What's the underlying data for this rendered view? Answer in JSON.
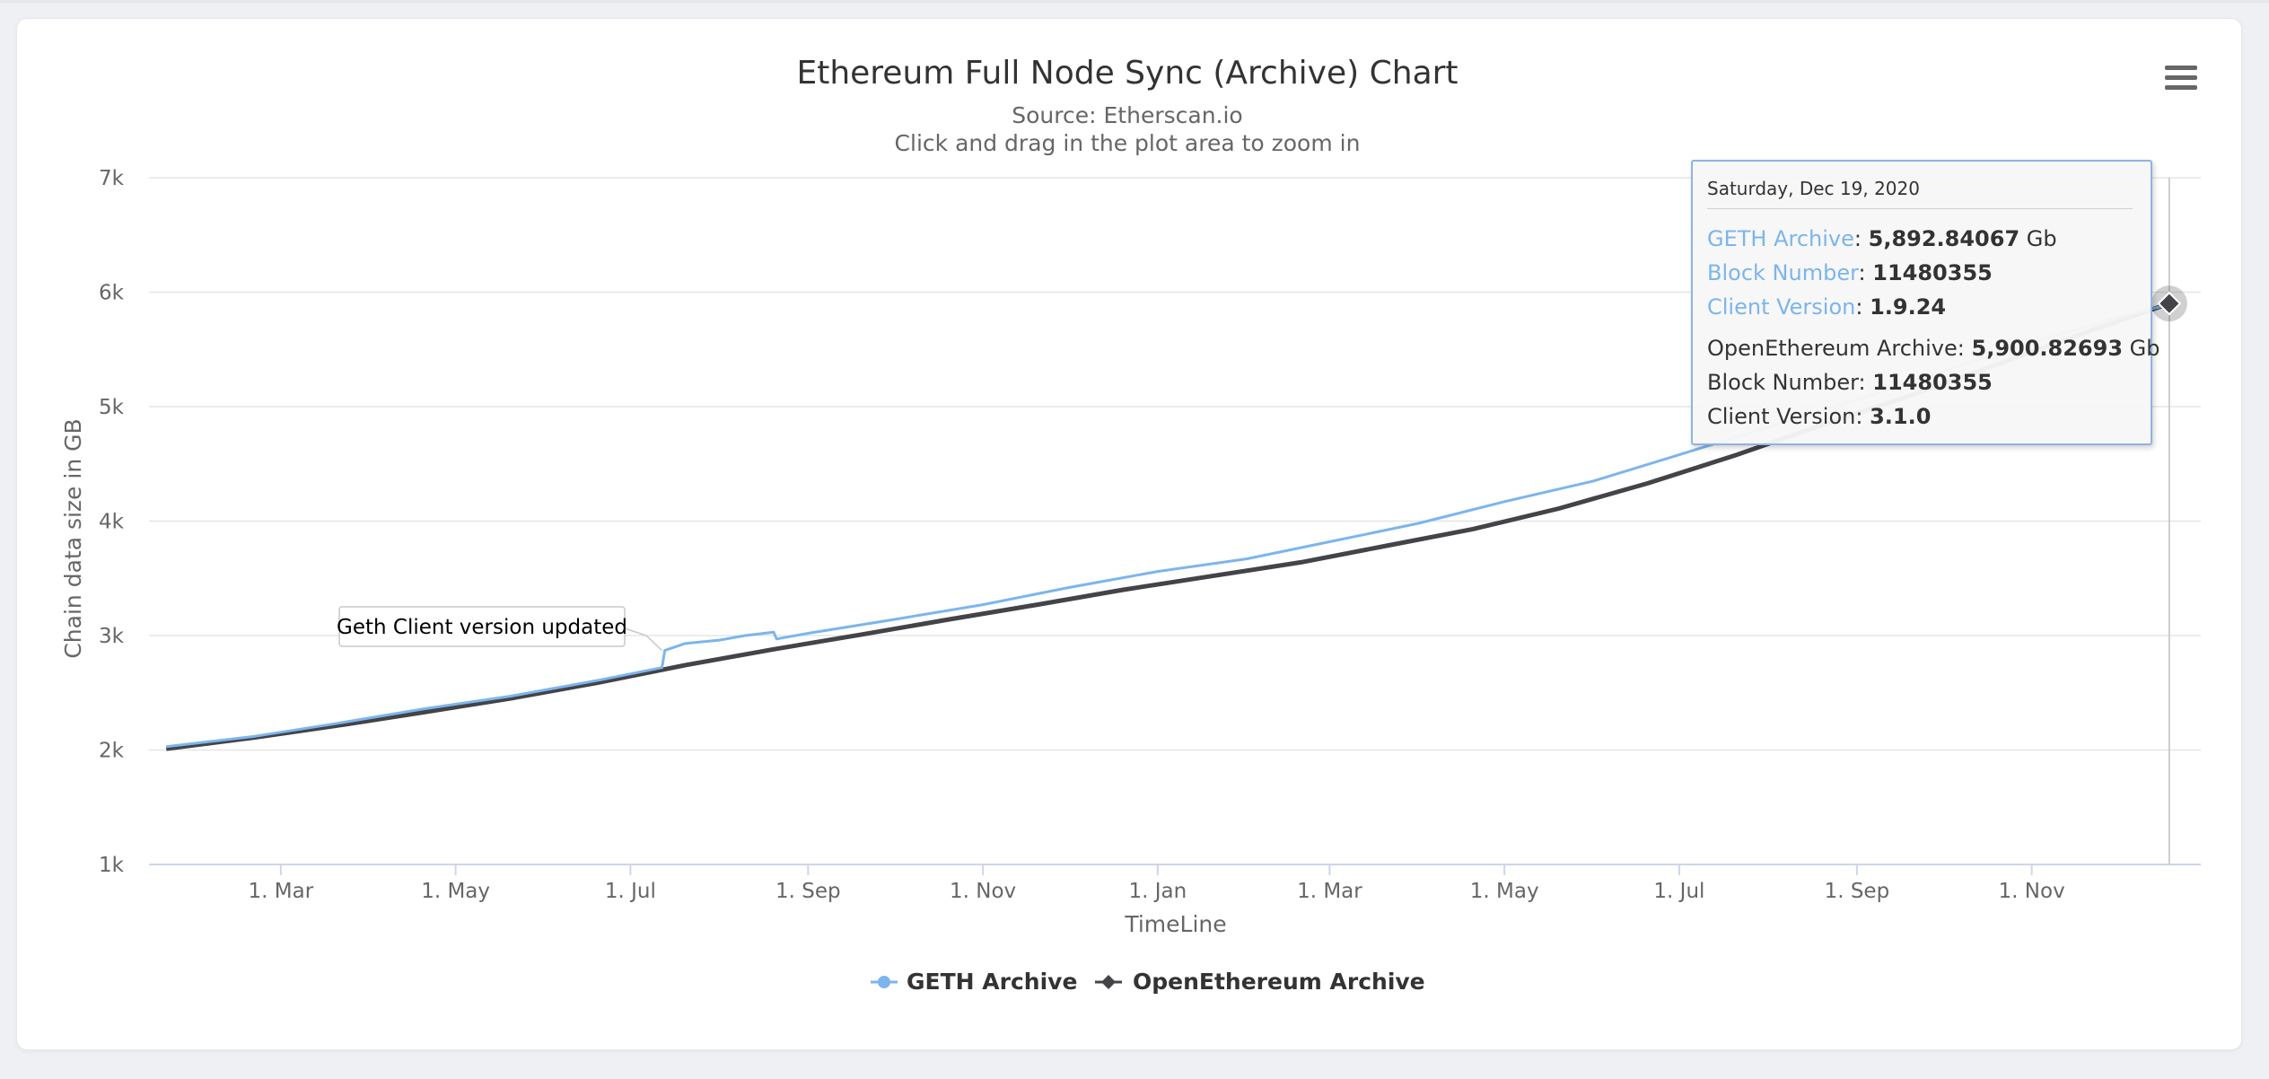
{
  "chart_data": {
    "type": "line",
    "title": "Ethereum Full Node Sync (Archive) Chart",
    "subtitle_lines": [
      "Source: Etherscan.io",
      "Click and drag in the plot area to zoom in"
    ],
    "xlabel": "TimeLine",
    "ylabel": "Chain data size in GB",
    "xlim": [
      "2019-01-14",
      "2020-12-30"
    ],
    "ylim": [
      1000,
      7000
    ],
    "y_ticks": [
      1000,
      2000,
      3000,
      4000,
      5000,
      6000,
      7000
    ],
    "y_tick_labels": [
      "1k",
      "2k",
      "3k",
      "4k",
      "5k",
      "6k",
      "7k"
    ],
    "x_ticks": [
      "2019-03-01",
      "2019-05-01",
      "2019-07-01",
      "2019-09-01",
      "2019-11-01",
      "2020-01-01",
      "2020-03-01",
      "2020-05-01",
      "2020-07-01",
      "2020-09-01",
      "2020-11-01"
    ],
    "x_tick_labels": [
      "1. Mar",
      "1. May",
      "1. Jul",
      "1. Sep",
      "1. Nov",
      "1. Jan",
      "1. Mar",
      "1. May",
      "1. Jul",
      "1. Sep",
      "1. Nov"
    ],
    "grid": true,
    "legend_position": "bottom-center",
    "series": [
      {
        "name": "GETH Archive",
        "color": "#7cb5ec",
        "marker": "circle",
        "x": [
          "2019-01-20",
          "2019-02-20",
          "2019-03-20",
          "2019-04-20",
          "2019-05-20",
          "2019-06-20",
          "2019-07-12",
          "2019-07-13",
          "2019-07-20",
          "2019-08-01",
          "2019-08-10",
          "2019-08-20",
          "2019-08-21",
          "2019-09-01",
          "2019-10-01",
          "2019-11-01",
          "2019-12-01",
          "2020-01-01",
          "2020-02-01",
          "2020-03-01",
          "2020-04-01",
          "2020-05-01",
          "2020-06-01",
          "2020-07-01",
          "2020-08-01",
          "2020-09-01",
          "2020-10-01",
          "2020-11-01",
          "2020-12-01",
          "2020-12-19"
        ],
        "y": [
          2030,
          2120,
          2230,
          2360,
          2470,
          2610,
          2720,
          2870,
          2930,
          2960,
          3000,
          3030,
          2970,
          3020,
          3140,
          3270,
          3420,
          3560,
          3670,
          3820,
          3980,
          4170,
          4350,
          4580,
          4820,
          5060,
          5310,
          5560,
          5780,
          5892.84067
        ]
      },
      {
        "name": "OpenEthereum Archive",
        "color": "#434348",
        "marker": "diamond",
        "x": [
          "2019-01-20",
          "2019-02-20",
          "2019-03-20",
          "2019-04-20",
          "2019-05-20",
          "2019-06-20",
          "2019-07-20",
          "2019-08-20",
          "2019-09-20",
          "2019-10-20",
          "2019-11-20",
          "2019-12-20",
          "2020-01-20",
          "2020-02-20",
          "2020-03-20",
          "2020-04-20",
          "2020-05-20",
          "2020-06-20",
          "2020-07-20",
          "2020-08-20",
          "2020-09-20",
          "2020-10-20",
          "2020-11-20",
          "2020-12-19"
        ],
        "y": [
          2010,
          2110,
          2210,
          2330,
          2450,
          2590,
          2740,
          2880,
          3010,
          3140,
          3270,
          3400,
          3520,
          3640,
          3780,
          3930,
          4110,
          4330,
          4570,
          4840,
          5100,
          5370,
          5650,
          5900.82693
        ]
      }
    ],
    "annotation": {
      "text": "Geth Client version updated",
      "x": "2019-07-12",
      "y": 2870
    },
    "tooltip": {
      "date": "Saturday, Dec 19, 2020",
      "geth_archive_label": "GETH Archive",
      "geth_archive_value": "5,892.84067",
      "unit": "Gb",
      "geth_block_label": "Block Number",
      "geth_block_value": "11480355",
      "geth_client_label": "Client Version",
      "geth_client_value": "1.9.24",
      "oe_archive_label": "OpenEthereum Archive",
      "oe_archive_value": "5,900.82693",
      "oe_block_label": "Block Number",
      "oe_block_value": "11480355",
      "oe_client_label": "Client Version",
      "oe_client_value": "3.1.0"
    }
  },
  "menu": {
    "icon": "hamburger-menu-icon"
  },
  "colors": {
    "grid": "#e6e6e6",
    "axis": "#ccd6eb",
    "text": "#333333",
    "tick": "#666666",
    "crosshair": "#cccccc"
  }
}
